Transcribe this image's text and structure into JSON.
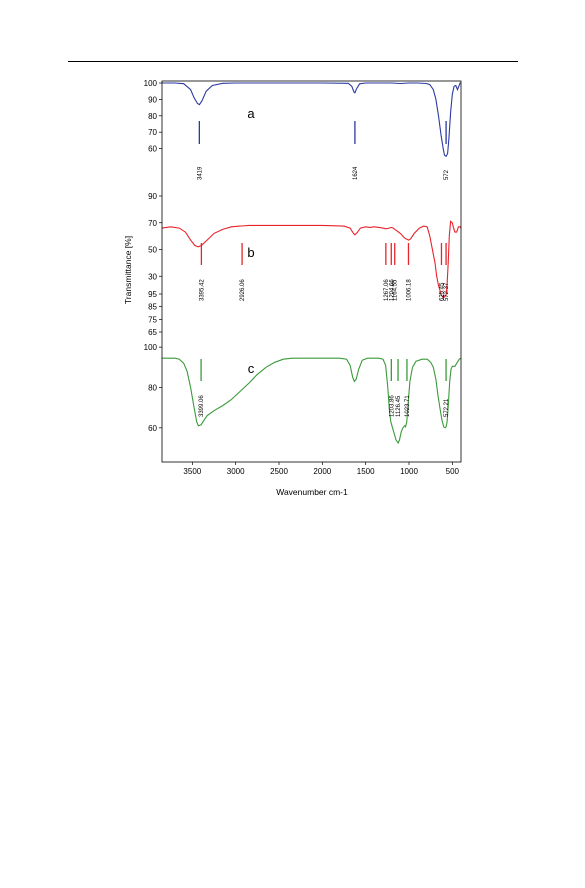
{
  "chart_data": {
    "type": "line",
    "xlabel": "Wavenumber cm-1",
    "ylabel": "Transmittance [%]",
    "xlim": [
      3850,
      400
    ],
    "x_ticks": [
      3500,
      3000,
      2500,
      2000,
      1500,
      1000,
      500
    ],
    "grid": false,
    "panels": [
      {
        "name": "a",
        "color": "#2b3aa0",
        "ylim": [
          50,
          100
        ],
        "y_ticks": [
          100,
          90,
          80,
          70,
          60
        ],
        "points": [
          [
            3850,
            100
          ],
          [
            3700,
            100
          ],
          [
            3600,
            99.6
          ],
          [
            3520,
            96
          ],
          [
            3480,
            91
          ],
          [
            3440,
            87.5
          ],
          [
            3419,
            86.8
          ],
          [
            3390,
            89
          ],
          [
            3340,
            95
          ],
          [
            3270,
            98.5
          ],
          [
            3150,
            99.8
          ],
          [
            3000,
            100
          ],
          [
            2500,
            100
          ],
          [
            2000,
            100
          ],
          [
            1700,
            99.8
          ],
          [
            1660,
            98
          ],
          [
            1635,
            94.5
          ],
          [
            1624,
            94
          ],
          [
            1605,
            96.5
          ],
          [
            1570,
            99.5
          ],
          [
            1500,
            100
          ],
          [
            1200,
            100
          ],
          [
            1100,
            99.7
          ],
          [
            1000,
            100
          ],
          [
            900,
            100
          ],
          [
            800,
            99.7
          ],
          [
            760,
            99
          ],
          [
            720,
            96
          ],
          [
            690,
            90
          ],
          [
            660,
            80
          ],
          [
            630,
            68
          ],
          [
            605,
            60
          ],
          [
            590,
            56
          ],
          [
            572,
            55.3
          ],
          [
            555,
            57
          ],
          [
            540,
            66
          ],
          [
            520,
            82
          ],
          [
            500,
            93
          ],
          [
            480,
            98
          ],
          [
            460,
            98.5
          ],
          [
            440,
            96
          ],
          [
            425,
            98
          ],
          [
            410,
            100
          ],
          [
            400,
            100
          ]
        ],
        "peaks": [
          {
            "x": 3419,
            "label": "3419"
          },
          {
            "x": 1624,
            "label": "1624"
          },
          {
            "x": 572,
            "label": "572"
          }
        ]
      },
      {
        "name": "b",
        "color": "#e8232a",
        "ylim": [
          10,
          90
        ],
        "y_ticks": [
          90,
          70,
          50,
          30
        ],
        "points": [
          [
            3850,
            66
          ],
          [
            3750,
            67
          ],
          [
            3650,
            66
          ],
          [
            3580,
            63
          ],
          [
            3520,
            57
          ],
          [
            3470,
            53
          ],
          [
            3435,
            52
          ],
          [
            3395,
            53
          ],
          [
            3330,
            57
          ],
          [
            3250,
            62
          ],
          [
            3150,
            65
          ],
          [
            3050,
            67
          ],
          [
            2950,
            67.5
          ],
          [
            2926,
            67.6
          ],
          [
            2850,
            68
          ],
          [
            2500,
            68
          ],
          [
            2000,
            68
          ],
          [
            1750,
            67.5
          ],
          [
            1680,
            66
          ],
          [
            1640,
            62
          ],
          [
            1624,
            61
          ],
          [
            1600,
            62.5
          ],
          [
            1560,
            66
          ],
          [
            1500,
            67
          ],
          [
            1450,
            66.5
          ],
          [
            1400,
            67
          ],
          [
            1350,
            66.5
          ],
          [
            1300,
            66
          ],
          [
            1267,
            65.5
          ],
          [
            1230,
            66
          ],
          [
            1204,
            66.5
          ],
          [
            1180,
            66
          ],
          [
            1164,
            65
          ],
          [
            1140,
            64
          ],
          [
            1100,
            62
          ],
          [
            1050,
            58.5
          ],
          [
            1006,
            57
          ],
          [
            980,
            58
          ],
          [
            940,
            62
          ],
          [
            880,
            66
          ],
          [
            830,
            67.5
          ],
          [
            790,
            67
          ],
          [
            760,
            60
          ],
          [
            730,
            50
          ],
          [
            700,
            40
          ],
          [
            680,
            30
          ],
          [
            660,
            23
          ],
          [
            640,
            19
          ],
          [
            625,
            16
          ],
          [
            605,
            14
          ],
          [
            590,
            14.5
          ],
          [
            572,
            16
          ],
          [
            560,
            24
          ],
          [
            548,
            40
          ],
          [
            535,
            60
          ],
          [
            520,
            71
          ],
          [
            500,
            70
          ],
          [
            485,
            66
          ],
          [
            470,
            63
          ],
          [
            450,
            63
          ],
          [
            430,
            67
          ],
          [
            410,
            67
          ],
          [
            400,
            66
          ]
        ],
        "peaks": [
          {
            "x": 3395.42,
            "label": "3395.42"
          },
          {
            "x": 2926.06,
            "label": "2926.06"
          },
          {
            "x": 1267.06,
            "label": "1267.06"
          },
          {
            "x": 1204.66,
            "label": "1204.66"
          },
          {
            "x": 1164.55,
            "label": "1164.55"
          },
          {
            "x": 1006.18,
            "label": "1006.18"
          },
          {
            "x": 625.45,
            "label": "625.45"
          },
          {
            "x": 572.37,
            "label": "572.37"
          }
        ]
      },
      {
        "name": "c",
        "color": "#3a9a3a",
        "ylim": [
          50,
          108
        ],
        "y_ticks": [
          100,
          80,
          60
        ],
        "top_ticks": [
          95,
          85,
          75,
          65
        ],
        "points": [
          [
            3850,
            94.5
          ],
          [
            3700,
            94.5
          ],
          [
            3650,
            94
          ],
          [
            3600,
            92
          ],
          [
            3560,
            88
          ],
          [
            3520,
            80
          ],
          [
            3480,
            70
          ],
          [
            3450,
            63
          ],
          [
            3430,
            61
          ],
          [
            3399,
            61.5
          ],
          [
            3370,
            63.5
          ],
          [
            3330,
            66
          ],
          [
            3250,
            68.5
          ],
          [
            3150,
            71
          ],
          [
            3050,
            74
          ],
          [
            2950,
            78
          ],
          [
            2850,
            82
          ],
          [
            2750,
            86.5
          ],
          [
            2650,
            90
          ],
          [
            2550,
            92.5
          ],
          [
            2450,
            94
          ],
          [
            2350,
            94.5
          ],
          [
            2000,
            94.5
          ],
          [
            1800,
            94.5
          ],
          [
            1720,
            94
          ],
          [
            1680,
            91
          ],
          [
            1650,
            85
          ],
          [
            1630,
            83
          ],
          [
            1610,
            84
          ],
          [
            1580,
            89
          ],
          [
            1540,
            93.5
          ],
          [
            1480,
            94.5
          ],
          [
            1350,
            94.5
          ],
          [
            1300,
            94
          ],
          [
            1270,
            91
          ],
          [
            1245,
            80
          ],
          [
            1225,
            68
          ],
          [
            1210,
            63
          ],
          [
            1203,
            62
          ],
          [
            1190,
            60
          ],
          [
            1170,
            57
          ],
          [
            1150,
            54
          ],
          [
            1125,
            52.5
          ],
          [
            1110,
            54
          ],
          [
            1090,
            58
          ],
          [
            1070,
            60
          ],
          [
            1050,
            61
          ],
          [
            1040,
            60.5
          ],
          [
            1025,
            63
          ],
          [
            1010,
            72
          ],
          [
            990,
            83
          ],
          [
            960,
            90
          ],
          [
            920,
            93
          ],
          [
            850,
            94
          ],
          [
            790,
            94
          ],
          [
            750,
            92.5
          ],
          [
            720,
            90
          ],
          [
            690,
            84
          ],
          [
            665,
            76
          ],
          [
            640,
            69
          ],
          [
            620,
            64
          ],
          [
            600,
            60.5
          ],
          [
            585,
            60
          ],
          [
            572,
            60.5
          ],
          [
            560,
            63
          ],
          [
            545,
            72
          ],
          [
            530,
            83
          ],
          [
            515,
            89
          ],
          [
            500,
            90.5
          ],
          [
            470,
            90.5
          ],
          [
            450,
            92
          ],
          [
            420,
            94
          ],
          [
            400,
            94.5
          ]
        ],
        "peaks": [
          {
            "x": 3399.06,
            "label": "3399.06"
          },
          {
            "x": 1203.86,
            "label": "1203.86"
          },
          {
            "x": 1126.45,
            "label": "1126.45"
          },
          {
            "x": 1023.71,
            "label": "1023.71"
          },
          {
            "x": 572.21,
            "label": "572.21"
          }
        ]
      }
    ]
  }
}
